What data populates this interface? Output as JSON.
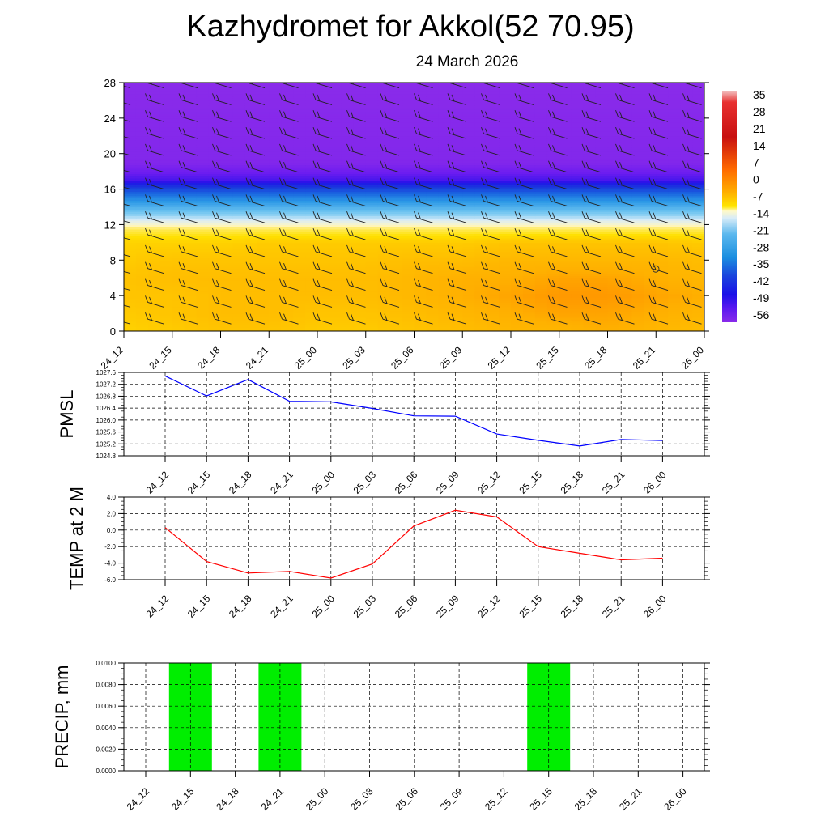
{
  "title": "Kazhydromet for Akkol(52 70.95)",
  "subtitle": "24 March 2026",
  "colors": {
    "pmsl_line": "#0000ff",
    "temp_line": "#ff0000",
    "precip_bar": "#00ee00",
    "axis": "#000000",
    "grid": "#000000"
  },
  "chart_data": [
    {
      "type": "heatmap",
      "title": "",
      "xlabel": "",
      "ylabel": "",
      "x": [
        "24_12",
        "24_15",
        "24_18",
        "24_21",
        "25_00",
        "25_03",
        "25_06",
        "25_09",
        "25_12",
        "25_15",
        "25_18",
        "25_21",
        "26_00"
      ],
      "y_ticks": [
        0,
        4,
        8,
        12,
        16,
        20,
        24,
        28
      ],
      "ylim": [
        0,
        28
      ],
      "colorbar": {
        "labels": [
          "35",
          "28",
          "21",
          "14",
          "7",
          "0",
          "-7",
          "-14",
          "-21",
          "-28",
          "-35",
          "-42",
          "-49",
          "-56"
        ]
      },
      "field_rows": [
        {
          "level": 0,
          "values": [
            2,
            3,
            4,
            4,
            3,
            3,
            4,
            5,
            6,
            6,
            7,
            6,
            5
          ]
        },
        {
          "level": 2,
          "values": [
            3,
            4,
            5,
            5,
            4,
            4,
            5,
            6,
            7,
            8,
            8,
            7,
            6
          ]
        },
        {
          "level": 4,
          "values": [
            4,
            4,
            5,
            5,
            5,
            5,
            6,
            7,
            8,
            9,
            9,
            8,
            7
          ]
        },
        {
          "level": 6,
          "values": [
            4,
            5,
            5,
            5,
            5,
            5,
            6,
            7,
            7,
            8,
            8,
            7,
            6
          ]
        },
        {
          "level": 8,
          "values": [
            3,
            4,
            4,
            4,
            4,
            4,
            5,
            5,
            6,
            6,
            6,
            6,
            5
          ]
        },
        {
          "level": 10,
          "values": [
            2,
            2,
            2,
            3,
            3,
            3,
            3,
            3,
            4,
            4,
            4,
            4,
            3
          ]
        },
        {
          "level": 11.5,
          "values": [
            -3,
            -3,
            -3,
            -3,
            -3,
            -3,
            -3,
            -3,
            -3,
            -3,
            -3,
            -3,
            -3
          ]
        },
        {
          "level": 13,
          "values": [
            -18,
            -18,
            -18,
            -18,
            -18,
            -18,
            -18,
            -18,
            -18,
            -18,
            -18,
            -18,
            -18
          ]
        },
        {
          "level": 15,
          "values": [
            -30,
            -30,
            -30,
            -30,
            -30,
            -30,
            -30,
            -30,
            -30,
            -30,
            -30,
            -30,
            -30
          ]
        },
        {
          "level": 17,
          "values": [
            -50,
            -50,
            -50,
            -50,
            -50,
            -50,
            -50,
            -50,
            -50,
            -50,
            -50,
            -50,
            -50
          ]
        },
        {
          "level": 19,
          "values": [
            -55,
            -55,
            -55,
            -55,
            -55,
            -55,
            -55,
            -55,
            -55,
            -55,
            -55,
            -55,
            -55
          ]
        },
        {
          "level": 28,
          "values": [
            -56,
            -56,
            -56,
            -56,
            -56,
            -56,
            -56,
            -56,
            -56,
            -56,
            -56,
            -56,
            -56
          ]
        }
      ]
    },
    {
      "type": "line",
      "title": "",
      "xlabel": "",
      "ylabel": "PMSL",
      "x": [
        "24_12",
        "24_15",
        "24_18",
        "24_21",
        "25_00",
        "25_03",
        "25_06",
        "25_09",
        "25_12",
        "25_15",
        "25_18",
        "25_21",
        "26_00"
      ],
      "y_ticks": [
        "1024.8",
        "1025.2",
        "1025.6",
        "1026.0",
        "1026.4",
        "1026.8",
        "1027.2",
        "1027.6"
      ],
      "ylim": [
        1024.8,
        1027.6
      ],
      "grid": true,
      "series": [
        {
          "values": [
            1027.48,
            1026.81,
            1027.36,
            1026.63,
            1026.61,
            1026.39,
            1026.14,
            1026.13,
            1025.53,
            1025.32,
            1025.13,
            1025.35,
            1025.31
          ]
        }
      ]
    },
    {
      "type": "line",
      "title": "",
      "xlabel": "",
      "ylabel": "TEMP at 2 M",
      "x": [
        "24_12",
        "24_15",
        "24_18",
        "24_21",
        "25_00",
        "25_03",
        "25_06",
        "25_09",
        "25_12",
        "25_15",
        "25_18",
        "25_21",
        "26_00"
      ],
      "y_ticks": [
        "-6.0",
        "-4.0",
        "-2.0",
        "0.0",
        "2.0",
        "4.0"
      ],
      "ylim": [
        -6,
        4
      ],
      "grid": true,
      "series": [
        {
          "values": [
            0.3,
            -3.8,
            -5.2,
            -5.0,
            -5.8,
            -4.1,
            0.5,
            2.4,
            1.6,
            -2.0,
            -2.8,
            -3.6,
            -3.4
          ]
        }
      ]
    },
    {
      "type": "bar",
      "title": "",
      "xlabel": "",
      "ylabel": "PRECIP, mm",
      "x": [
        "24_12",
        "24_15",
        "24_18",
        "24_21",
        "25_00",
        "25_03",
        "25_06",
        "25_09",
        "25_12",
        "25_15",
        "25_18",
        "25_21",
        "26_00"
      ],
      "y_ticks": [
        "0.0000",
        "0.0020",
        "0.0040",
        "0.0060",
        "0.0080",
        "0.0100"
      ],
      "ylim": [
        0,
        0.01
      ],
      "grid": true,
      "values": [
        0,
        0.01,
        0,
        0.01,
        0,
        0,
        0,
        0,
        0,
        0.01,
        0,
        0,
        0
      ]
    }
  ]
}
